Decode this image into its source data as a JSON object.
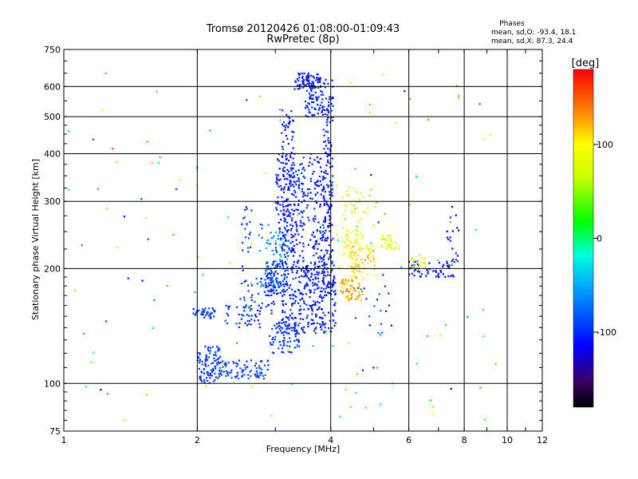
{
  "chart_data": {
    "type": "scatter",
    "title": "Tromsø 20120426 01:08:00-01:09:43",
    "subtitle": "RwPretec (8p)",
    "xlabel": "Frequency [MHz]",
    "ylabel": "Stationary phase Virtual Height [km]",
    "x_scale": "log",
    "y_scale": "log",
    "xlim": [
      1,
      12
    ],
    "ylim": [
      75,
      750
    ],
    "x_ticks": [
      "1",
      "2",
      "4",
      "6",
      "8",
      "10",
      "12"
    ],
    "y_ticks": [
      "75",
      "100",
      "200",
      "300",
      "400",
      "500",
      "600",
      "750"
    ],
    "grid": true,
    "stats": {
      "heading": "Phases",
      "line_o": "mean, sd,O: -93.4, 18.1",
      "line_x": "mean, sd,X: 87.3, 24.4"
    },
    "colorbar": {
      "label": "[deg]",
      "range": [
        -180,
        180
      ],
      "ticks": [
        "100",
        "0",
        "-100"
      ],
      "tick_values": [
        100,
        0,
        -100
      ]
    },
    "clusters": [
      {
        "x": [
          3.3,
          3.8
        ],
        "y": [
          590,
          650
        ],
        "n": 90,
        "phase": [
          -115,
          -95
        ]
      },
      {
        "x": [
          3.5,
          3.85
        ],
        "y": [
          500,
          590
        ],
        "n": 60,
        "phase": [
          -110,
          -90
        ]
      },
      {
        "x": [
          3.1,
          3.3
        ],
        "y": [
          220,
          520
        ],
        "n": 110,
        "phase": [
          -120,
          -95
        ]
      },
      {
        "x": [
          3.0,
          4.0
        ],
        "y": [
          210,
          400
        ],
        "n": 330,
        "phase": [
          -120,
          -90
        ]
      },
      {
        "x": [
          3.85,
          4.05
        ],
        "y": [
          170,
          630
        ],
        "n": 140,
        "phase": [
          -120,
          -85
        ]
      },
      {
        "x": [
          2.85,
          4.1
        ],
        "y": [
          170,
          210
        ],
        "n": 260,
        "phase": [
          -120,
          -90
        ]
      },
      {
        "x": [
          2.75,
          3.2
        ],
        "y": [
          175,
          265
        ],
        "n": 70,
        "phase": [
          -85,
          -35
        ]
      },
      {
        "x": [
          2.5,
          3.0
        ],
        "y": [
          150,
          200
        ],
        "n": 60,
        "phase": [
          -110,
          -80
        ]
      },
      {
        "x": [
          3.1,
          4.1
        ],
        "y": [
          135,
          170
        ],
        "n": 160,
        "phase": [
          -115,
          -90
        ]
      },
      {
        "x": [
          2.9,
          3.4
        ],
        "y": [
          120,
          145
        ],
        "n": 80,
        "phase": [
          -105,
          -80
        ]
      },
      {
        "x": [
          2.0,
          2.25
        ],
        "y": [
          100,
          125
        ],
        "n": 100,
        "phase": [
          -105,
          -80
        ]
      },
      {
        "x": [
          2.25,
          2.9
        ],
        "y": [
          103,
          115
        ],
        "n": 90,
        "phase": [
          -100,
          -75
        ]
      },
      {
        "x": [
          1.95,
          2.2
        ],
        "y": [
          148,
          158
        ],
        "n": 40,
        "phase": [
          -105,
          -85
        ]
      },
      {
        "x": [
          2.3,
          2.8
        ],
        "y": [
          140,
          160
        ],
        "n": 40,
        "phase": [
          -105,
          -85
        ]
      },
      {
        "x": [
          2.5,
          2.65
        ],
        "y": [
          220,
          290
        ],
        "n": 20,
        "phase": [
          -100,
          -80
        ]
      },
      {
        "x": [
          4.2,
          4.8
        ],
        "y": [
          165,
          190
        ],
        "n": 60,
        "phase": [
          105,
          140
        ]
      },
      {
        "x": [
          4.4,
          5.1
        ],
        "y": [
          190,
          230
        ],
        "n": 60,
        "phase": [
          90,
          130
        ]
      },
      {
        "x": [
          4.2,
          4.8
        ],
        "y": [
          215,
          250
        ],
        "n": 40,
        "phase": [
          75,
          105
        ]
      },
      {
        "x": [
          5.2,
          5.7
        ],
        "y": [
          225,
          245
        ],
        "n": 30,
        "phase": [
          70,
          100
        ]
      },
      {
        "x": [
          4.1,
          5.1
        ],
        "y": [
          250,
          330
        ],
        "n": 40,
        "phase": [
          40,
          110
        ]
      },
      {
        "x": [
          6.0,
          6.7
        ],
        "y": [
          190,
          210
        ],
        "n": 30,
        "phase": [
          -120,
          -90
        ]
      },
      {
        "x": [
          6.8,
          7.6
        ],
        "y": [
          190,
          210
        ],
        "n": 25,
        "phase": [
          -125,
          -95
        ]
      },
      {
        "x": [
          7.3,
          7.8
        ],
        "y": [
          200,
          280
        ],
        "n": 20,
        "phase": [
          -125,
          -95
        ]
      },
      {
        "x": [
          6.1,
          6.6
        ],
        "y": [
          200,
          220
        ],
        "n": 18,
        "phase": [
          65,
          95
        ]
      },
      {
        "x": [
          4.5,
          5.5
        ],
        "y": [
          130,
          180
        ],
        "n": 20,
        "phase": [
          -110,
          -60
        ]
      },
      {
        "x": [
          1.0,
          10.0
        ],
        "y": [
          80,
          650
        ],
        "n": 130,
        "phase": [
          -120,
          150
        ]
      }
    ]
  }
}
